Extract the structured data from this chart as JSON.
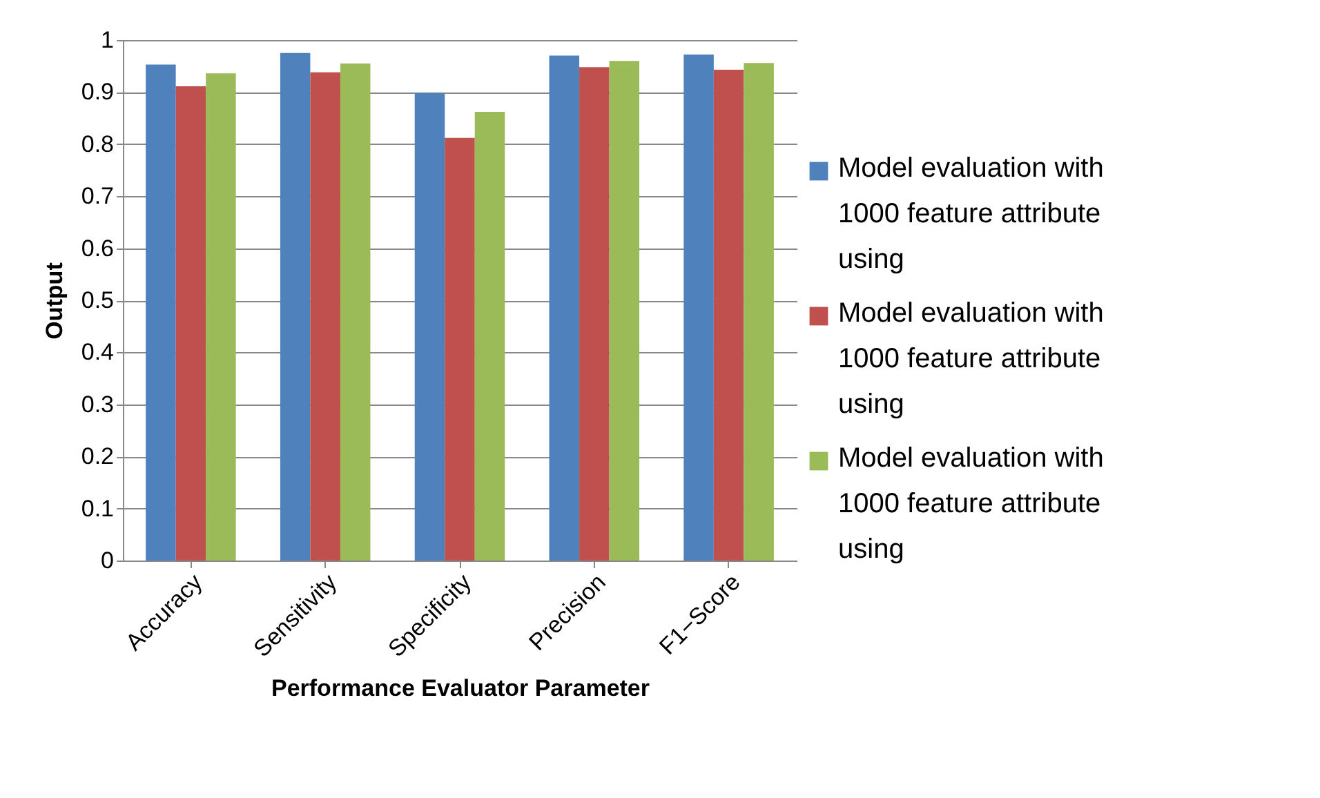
{
  "chart_data": {
    "type": "bar",
    "xlabel": "Performance Evaluator Parameter",
    "ylabel": "Output",
    "categories": [
      "Accuracy",
      "Sensitivity",
      "Specificity",
      "Precision",
      "F1−Score"
    ],
    "series": [
      {
        "name": "Model evaluation with 1000 feature attribute using",
        "color": "#4f81bd",
        "values": [
          0.953,
          0.975,
          0.898,
          0.97,
          0.972
        ]
      },
      {
        "name": "Model evaluation with 1000 feature attribute using",
        "color": "#c0504d",
        "values": [
          0.911,
          0.938,
          0.812,
          0.948,
          0.943
        ]
      },
      {
        "name": "Model evaluation with 1000 feature attribute using",
        "color": "#9bbb59",
        "values": [
          0.936,
          0.955,
          0.862,
          0.96,
          0.956
        ]
      }
    ],
    "ylim": [
      0,
      1
    ],
    "yticks": [
      0,
      0.1,
      0.2,
      0.3,
      0.4,
      0.5,
      0.6,
      0.7,
      0.8,
      0.9,
      1
    ],
    "grid": "y",
    "legend": "right"
  }
}
